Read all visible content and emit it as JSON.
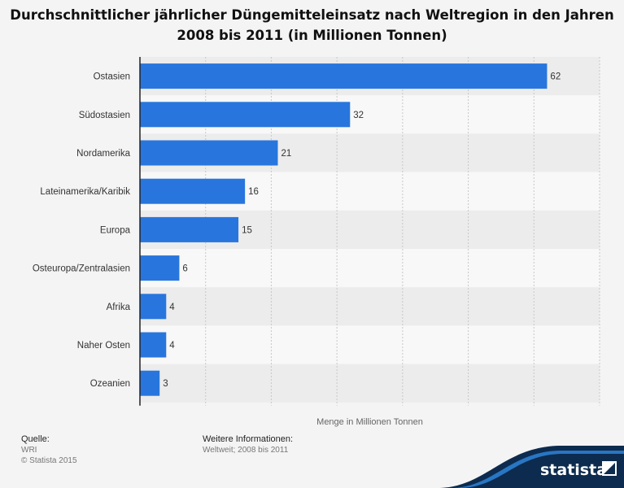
{
  "title_line1": "Durchschnittlicher jährlicher Düngemitteleinsatz nach Weltregion in den Jahren",
  "title_line2": "2008 bis 2011 (in Millionen Tonnen)",
  "chart_data": {
    "type": "bar",
    "orientation": "horizontal",
    "categories": [
      "Ostasien",
      "Südostasien",
      "Nordamerika",
      "Lateinamerika/Karibik",
      "Europa",
      "Osteuropa/Zentralasien",
      "Afrika",
      "Naher Osten",
      "Ozeanien"
    ],
    "values": [
      62,
      32,
      21,
      16,
      15,
      6,
      4,
      4,
      3
    ],
    "data_labels": [
      "62",
      "32",
      "21",
      "16",
      "15",
      "6",
      "4",
      "4",
      "3"
    ],
    "xlabel": "Menge in Millionen Tonnen",
    "xlim": [
      0,
      70
    ],
    "grid": true,
    "bar_color": "#2876dd"
  },
  "footer": {
    "source_label": "Quelle:",
    "source_value": "WRI",
    "copyright": "© Statista 2015",
    "info_label": "Weitere Informationen:",
    "info_value": "Weltweit; 2008 bis 2011"
  },
  "brand": {
    "name": "statista",
    "icon": "statista-logo-icon",
    "color": "#0d2b4e"
  }
}
